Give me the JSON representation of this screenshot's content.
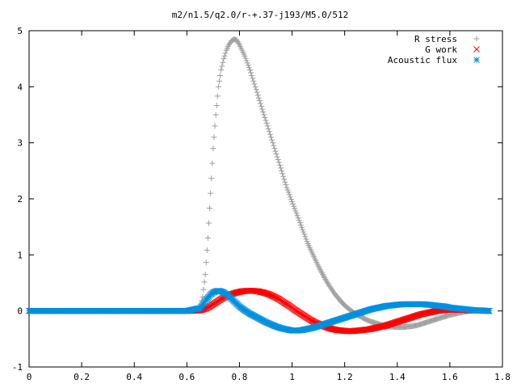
{
  "chart_data": {
    "type": "scatter",
    "title": "m2/n1.5/q2.0/r-+.37-j193/M5.0/512",
    "xlabel": "",
    "ylabel": "",
    "xlim": [
      0,
      1.8
    ],
    "ylim": [
      -1,
      5
    ],
    "xticks": [
      0,
      0.2,
      0.4,
      0.6,
      0.8,
      1,
      1.2,
      1.4,
      1.6,
      1.8
    ],
    "xtick_labels": [
      "0",
      "0.2",
      "0.4",
      "0.6",
      "0.8",
      "1",
      "1.2",
      "1.4",
      "1.6",
      "1.8"
    ],
    "yticks": [
      -1,
      0,
      1,
      2,
      3,
      4,
      5
    ],
    "ytick_labels": [
      "-1",
      "0",
      "1",
      "2",
      "3",
      "4",
      "5"
    ],
    "grid": false,
    "legend_position": "top-right",
    "series": [
      {
        "name": "R stress",
        "marker": "plus",
        "color": "#a0a0a0",
        "x": [
          0,
          0.1,
          0.2,
          0.3,
          0.4,
          0.5,
          0.6,
          0.65,
          0.66,
          0.67,
          0.68,
          0.69,
          0.7,
          0.71,
          0.72,
          0.73,
          0.74,
          0.75,
          0.76,
          0.77,
          0.78,
          0.79,
          0.8,
          0.82,
          0.84,
          0.86,
          0.88,
          0.9,
          0.92,
          0.94,
          0.96,
          0.98,
          1.0,
          1.02,
          1.04,
          1.06,
          1.08,
          1.1,
          1.12,
          1.14,
          1.16,
          1.18,
          1.2,
          1.22,
          1.24,
          1.26,
          1.28,
          1.3,
          1.32,
          1.34,
          1.36,
          1.38,
          1.4,
          1.42,
          1.44,
          1.46,
          1.48,
          1.5,
          1.52,
          1.54,
          1.56,
          1.58,
          1.6,
          1.62,
          1.64,
          1.66,
          1.68,
          1.7,
          1.72,
          1.74,
          1.75
        ],
        "y": [
          0,
          0,
          0,
          0,
          0,
          0,
          0,
          0.05,
          0.25,
          0.65,
          1.3,
          2.1,
          2.9,
          3.5,
          4.0,
          4.3,
          4.5,
          4.65,
          4.75,
          4.82,
          4.85,
          4.83,
          4.75,
          4.55,
          4.3,
          4.0,
          3.7,
          3.4,
          3.1,
          2.8,
          2.5,
          2.2,
          1.95,
          1.7,
          1.45,
          1.2,
          1.0,
          0.8,
          0.62,
          0.46,
          0.32,
          0.2,
          0.1,
          0.02,
          -0.05,
          -0.1,
          -0.15,
          -0.19,
          -0.22,
          -0.25,
          -0.27,
          -0.28,
          -0.29,
          -0.29,
          -0.28,
          -0.27,
          -0.25,
          -0.22,
          -0.19,
          -0.16,
          -0.13,
          -0.1,
          -0.07,
          -0.05,
          -0.03,
          -0.01,
          0,
          0.01,
          0.01,
          0.01,
          0
        ]
      },
      {
        "name": "G work",
        "marker": "cross",
        "color": "#ff0000",
        "x": [
          0,
          0.1,
          0.2,
          0.3,
          0.4,
          0.5,
          0.6,
          0.65,
          0.67,
          0.69,
          0.71,
          0.73,
          0.75,
          0.77,
          0.79,
          0.81,
          0.83,
          0.85,
          0.87,
          0.89,
          0.91,
          0.93,
          0.95,
          0.97,
          0.99,
          1.01,
          1.03,
          1.05,
          1.07,
          1.09,
          1.11,
          1.13,
          1.15,
          1.17,
          1.19,
          1.21,
          1.23,
          1.25,
          1.27,
          1.29,
          1.31,
          1.33,
          1.35,
          1.37,
          1.39,
          1.41,
          1.43,
          1.45,
          1.47,
          1.49,
          1.51,
          1.53,
          1.55,
          1.57,
          1.59,
          1.61,
          1.63,
          1.65,
          1.67,
          1.69,
          1.71,
          1.73,
          1.75
        ],
        "y": [
          0,
          0,
          0,
          0,
          0,
          0,
          0,
          0.01,
          0.04,
          0.09,
          0.15,
          0.21,
          0.26,
          0.3,
          0.33,
          0.35,
          0.36,
          0.36,
          0.35,
          0.33,
          0.3,
          0.26,
          0.21,
          0.15,
          0.09,
          0.02,
          -0.04,
          -0.1,
          -0.16,
          -0.21,
          -0.25,
          -0.29,
          -0.32,
          -0.34,
          -0.35,
          -0.36,
          -0.36,
          -0.35,
          -0.34,
          -0.33,
          -0.31,
          -0.29,
          -0.27,
          -0.24,
          -0.21,
          -0.18,
          -0.15,
          -0.12,
          -0.09,
          -0.06,
          -0.04,
          -0.02,
          0,
          0.01,
          0.02,
          0.02,
          0.02,
          0.02,
          0.01,
          0.01,
          0.01,
          0,
          0
        ]
      },
      {
        "name": "Acoustic flux",
        "marker": "star",
        "color": "#0090e0",
        "x": [
          0,
          0.1,
          0.2,
          0.3,
          0.4,
          0.5,
          0.6,
          0.65,
          0.67,
          0.69,
          0.7,
          0.71,
          0.72,
          0.73,
          0.74,
          0.75,
          0.76,
          0.78,
          0.8,
          0.82,
          0.84,
          0.86,
          0.88,
          0.9,
          0.92,
          0.94,
          0.96,
          0.98,
          1.0,
          1.02,
          1.04,
          1.06,
          1.08,
          1.1,
          1.12,
          1.14,
          1.16,
          1.18,
          1.2,
          1.22,
          1.24,
          1.26,
          1.28,
          1.3,
          1.32,
          1.34,
          1.36,
          1.38,
          1.4,
          1.42,
          1.44,
          1.46,
          1.48,
          1.5,
          1.52,
          1.54,
          1.56,
          1.58,
          1.6,
          1.62,
          1.64,
          1.66,
          1.68,
          1.7,
          1.72,
          1.74,
          1.75
        ],
        "y": [
          0,
          0,
          0,
          0,
          0,
          0,
          0,
          0.05,
          0.18,
          0.29,
          0.33,
          0.35,
          0.36,
          0.35,
          0.33,
          0.3,
          0.26,
          0.17,
          0.08,
          0.01,
          -0.05,
          -0.1,
          -0.15,
          -0.2,
          -0.24,
          -0.28,
          -0.31,
          -0.33,
          -0.35,
          -0.35,
          -0.34,
          -0.32,
          -0.3,
          -0.27,
          -0.24,
          -0.21,
          -0.18,
          -0.15,
          -0.12,
          -0.09,
          -0.06,
          -0.03,
          0,
          0.03,
          0.05,
          0.07,
          0.09,
          0.1,
          0.11,
          0.12,
          0.12,
          0.12,
          0.12,
          0.12,
          0.11,
          0.1,
          0.09,
          0.08,
          0.06,
          0.05,
          0.04,
          0.03,
          0.02,
          0.01,
          0.01,
          0,
          0
        ]
      }
    ]
  }
}
